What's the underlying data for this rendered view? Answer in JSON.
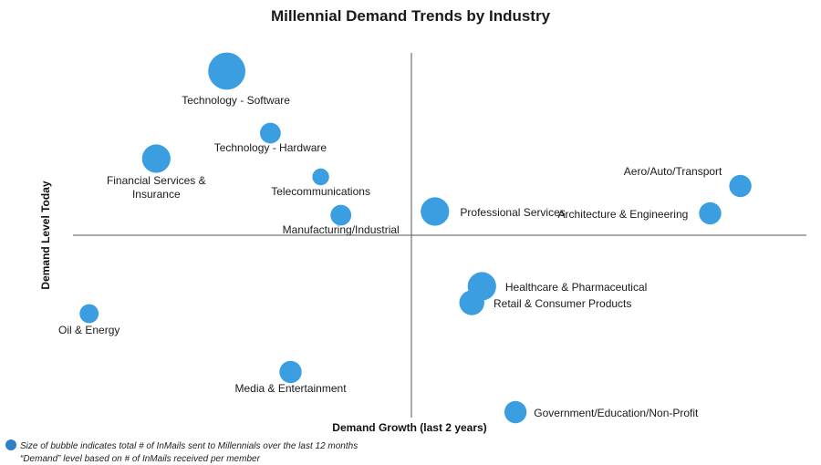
{
  "chart_data": {
    "type": "scatter",
    "title": "Millennial Demand Trends by Industry",
    "xlabel": "Demand Growth (last 2 years)",
    "ylabel": "Demand Level Today",
    "xlim": [
      -100,
      100
    ],
    "ylim": [
      -100,
      100
    ],
    "grid": false,
    "color": "#3a9ee0",
    "points": [
      {
        "label": "Technology - Software",
        "x": -55,
        "y": 90,
        "size": 10
      },
      {
        "label": "Technology - Hardware",
        "x": -42,
        "y": 56,
        "size": 2
      },
      {
        "label": "Financial Services & Insurance",
        "x": -76,
        "y": 42,
        "size": 5
      },
      {
        "label": "Telecommunications",
        "x": -27,
        "y": 32,
        "size": 1
      },
      {
        "label": "Manufacturing/Industrial",
        "x": -21,
        "y": 11,
        "size": 2
      },
      {
        "label": "Professional Services",
        "x": 7,
        "y": 13,
        "size": 5
      },
      {
        "label": "Aero/Auto/Transport",
        "x": 98,
        "y": 27,
        "size": 2.5
      },
      {
        "label": "Architecture & Engineering",
        "x": 89,
        "y": 12,
        "size": 2.5
      },
      {
        "label": "Healthcare & Pharmaceutical",
        "x": 21,
        "y": -28,
        "size": 5
      },
      {
        "label": "Retail & Consumer Products",
        "x": 18,
        "y": -37,
        "size": 3.5
      },
      {
        "label": "Oil & Energy",
        "x": -96,
        "y": -43,
        "size": 1.5
      },
      {
        "label": "Media & Entertainment",
        "x": -36,
        "y": -75,
        "size": 2.5
      },
      {
        "label": "Government/Education/Non-Profit",
        "x": 31,
        "y": -97,
        "size": 2.5
      }
    ],
    "notes": [
      "Size of bubble indicates total # of InMails sent to Millennials over the last 12 months",
      "“Demand” level based on # of InMails received per member"
    ]
  }
}
